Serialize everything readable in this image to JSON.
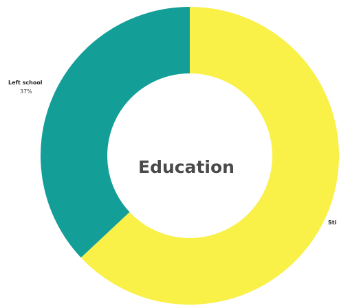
{
  "chart_data": {
    "type": "pie",
    "title": "Education",
    "categories": [
      "Left school",
      "Sti"
    ],
    "values": [
      37,
      63
    ],
    "data_labels": [
      "37%",
      ""
    ],
    "colors": [
      "#139e98",
      "#f9f048"
    ]
  }
}
